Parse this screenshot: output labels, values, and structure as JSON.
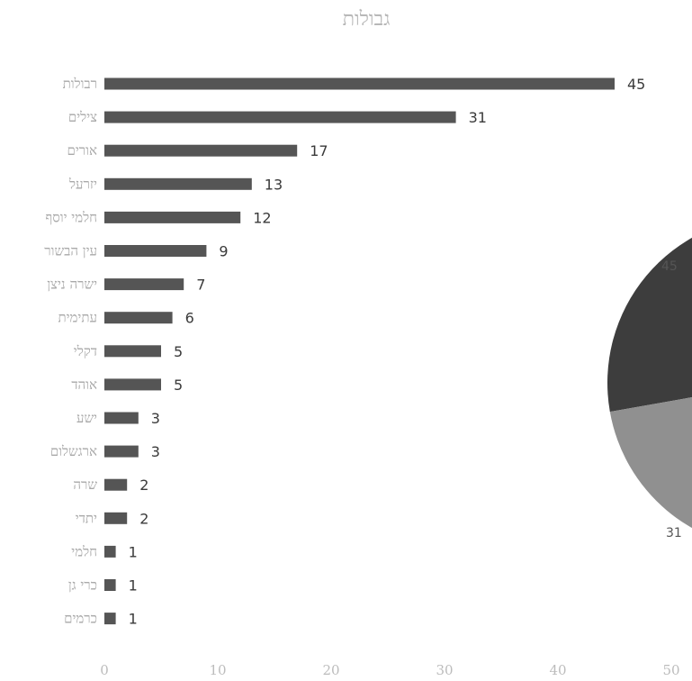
{
  "chart_data": [
    {
      "type": "bar",
      "orientation": "horizontal",
      "title": "גבולות",
      "categories": [
        "רבולות",
        "צילים",
        "אורים",
        "יזרעל",
        "חלמי יוסף",
        "עין הבשור",
        "ישרה ניצן",
        "עתימית",
        "דקלי",
        "אוהד",
        "ישע",
        "ארגשלום",
        "שרה",
        "יתדי",
        "חלמי",
        "כרי גן",
        "כרמים"
      ],
      "values": [
        45,
        31,
        17,
        13,
        12,
        9,
        7,
        6,
        5,
        5,
        3,
        3,
        2,
        2,
        1,
        1,
        1
      ],
      "xlim": [
        0,
        50
      ],
      "xticks": [
        0,
        10,
        20,
        30,
        40,
        50
      ],
      "grid": false,
      "bar_color": "#555555"
    },
    {
      "type": "pie",
      "partial": true,
      "visible_slice_labels": [
        "45",
        "31"
      ],
      "colors": [
        "#3d3d3d",
        "#909090"
      ]
    }
  ]
}
